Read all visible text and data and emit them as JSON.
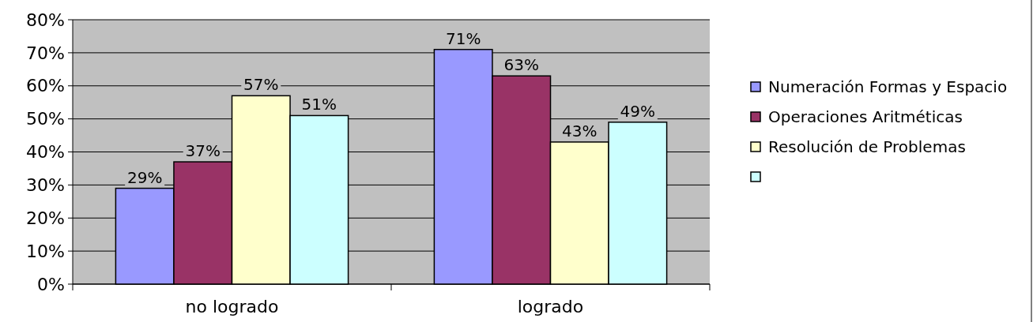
{
  "chart_data": {
    "type": "bar",
    "categories": [
      "no logrado",
      "logrado"
    ],
    "series": [
      {
        "name": "Numeración Formas y Espacio",
        "color": "#9999ff",
        "values": [
          29,
          71
        ],
        "value_labels": [
          "29%",
          "71%"
        ]
      },
      {
        "name": "Operaciones Aritméticas",
        "color": "#993366",
        "values": [
          37,
          63
        ],
        "value_labels": [
          "37%",
          "63%"
        ]
      },
      {
        "name": "Resolución de Problemas",
        "color": "#ffffcc",
        "values": [
          57,
          43
        ],
        "value_labels": [
          "57%",
          "43%"
        ]
      },
      {
        "color": "#ccffff",
        "values": [
          51,
          49
        ],
        "value_labels": [
          "51%",
          "49%"
        ]
      }
    ],
    "ylim": [
      0,
      80
    ],
    "yticks": [
      {
        "value": 0,
        "label": "0%"
      },
      {
        "value": 10,
        "label": "10%"
      },
      {
        "value": 20,
        "label": "20%"
      },
      {
        "value": 30,
        "label": "30%"
      },
      {
        "value": 40,
        "label": "40%"
      },
      {
        "value": 50,
        "label": "50%"
      },
      {
        "value": 60,
        "label": "60%"
      },
      {
        "value": 70,
        "label": "70%"
      },
      {
        "value": 80,
        "label": "80%"
      }
    ],
    "grid": "y",
    "legend": "right"
  }
}
